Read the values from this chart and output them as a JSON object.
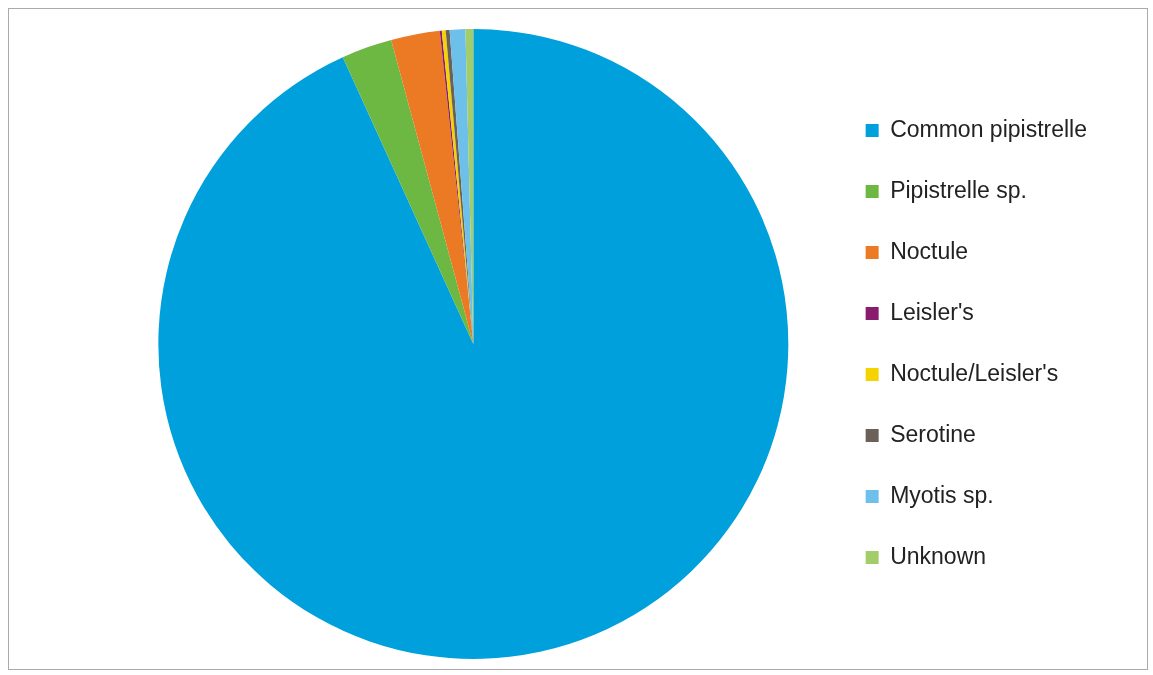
{
  "chart_data": {
    "type": "pie",
    "categories": [
      "Common pipistrelle",
      "Pipistrelle sp.",
      "Noctule",
      "Leisler's",
      "Noctule/Leisler's",
      "Serotine",
      "Myotis sp.",
      "Unknown"
    ],
    "values": [
      93.2,
      2.6,
      2.5,
      0.1,
      0.2,
      0.2,
      0.8,
      0.4
    ],
    "colors": [
      "#00a0dc",
      "#6cb843",
      "#ec7a24",
      "#8a1c6e",
      "#f4d300",
      "#6b6158",
      "#6cc0ea",
      "#a3cc6a"
    ],
    "legend": "right"
  }
}
